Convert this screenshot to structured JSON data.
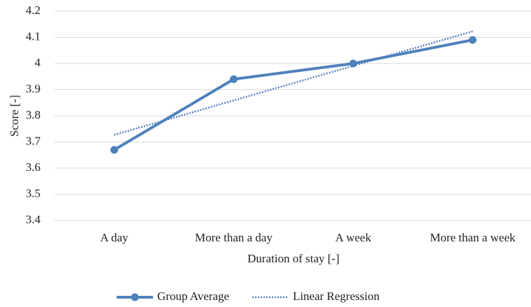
{
  "chart_data": {
    "type": "line",
    "x_label": "Duration of stay [-]",
    "y_label": "Score [-]",
    "categories": [
      "A day",
      "More than a day",
      "A week",
      "More than a week"
    ],
    "series": [
      {
        "name": "Group Average",
        "color": "#4f81bd",
        "line_style": "solid",
        "markers": true,
        "values": [
          3.67,
          3.94,
          4.0,
          4.09
        ]
      },
      {
        "name": "Linear Regression",
        "color": "#4f81bd",
        "line_style": "dotted",
        "markers": false,
        "values": [
          3.727,
          3.859,
          3.991,
          4.123
        ]
      }
    ],
    "ylim": [
      3.4,
      4.2
    ],
    "yticks": [
      3.4,
      3.5,
      3.6,
      3.7,
      3.8,
      3.9,
      4,
      4.1,
      4.2
    ],
    "grid": true,
    "legend": "bottom"
  }
}
